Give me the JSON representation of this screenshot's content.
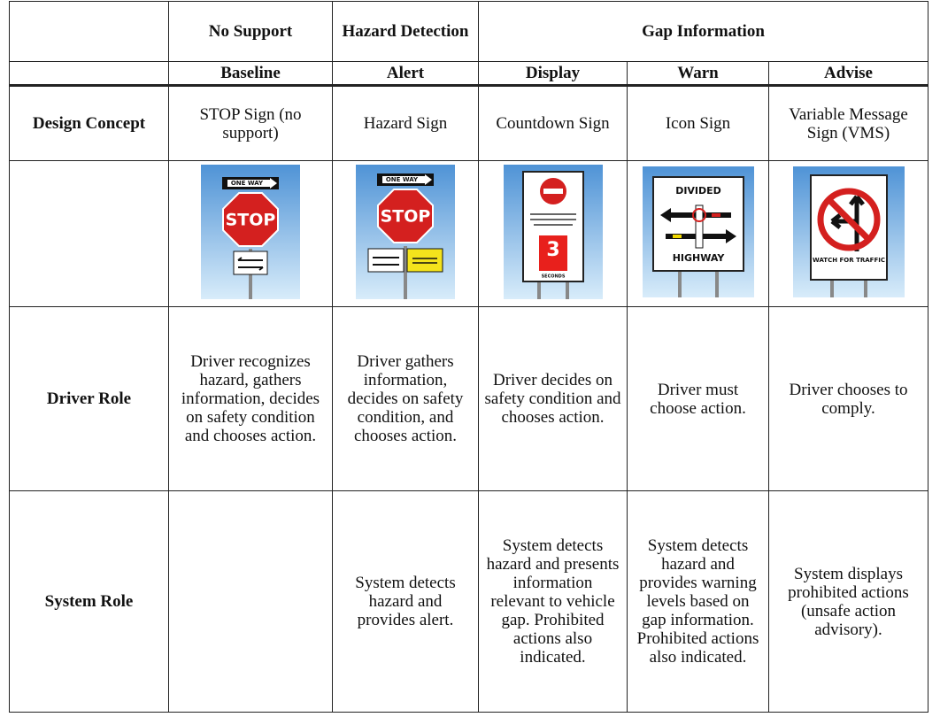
{
  "table": {
    "group_headers": [
      "No Support",
      "Hazard Detection",
      "Gap Information"
    ],
    "column_headers": [
      "Baseline",
      "Alert",
      "Display",
      "Warn",
      "Advise"
    ],
    "rows": [
      {
        "label": "Design Concept",
        "cells": [
          "STOP Sign (no support)",
          "Hazard Sign",
          "Countdown Sign",
          "Icon Sign",
          "Variable Message Sign (VMS)"
        ]
      },
      {
        "label": "Driver Role",
        "cells": [
          "Driver recognizes hazard, gathers information, decides on safety condition and chooses action.",
          "Driver gathers information, decides on safety condition, and chooses action.",
          "Driver decides on safety condition and chooses action.",
          "Driver must choose action.",
          "Driver chooses to comply."
        ]
      },
      {
        "label": "System Role",
        "cells": [
          null,
          "System detects hazard and provides alert.",
          "System detects hazard and presents information relevant to vehicle gap. Prohibited actions also indicated.",
          "System detects hazard and provides warning levels based on gap information. Prohibited actions also indicated.",
          "System displays prohibited actions (unsafe action advisory)."
        ]
      }
    ],
    "signs": {
      "baseline": {
        "one_way": "ONE WAY",
        "stop": "STOP"
      },
      "alert": {
        "one_way": "ONE WAY",
        "stop": "STOP"
      },
      "display": {
        "count": "3",
        "unit": "SECONDS"
      },
      "warn": {
        "top": "DIVIDED",
        "bottom": "HIGHWAY"
      },
      "advise": {
        "caption": "WATCH FOR TRAFFIC"
      }
    }
  }
}
